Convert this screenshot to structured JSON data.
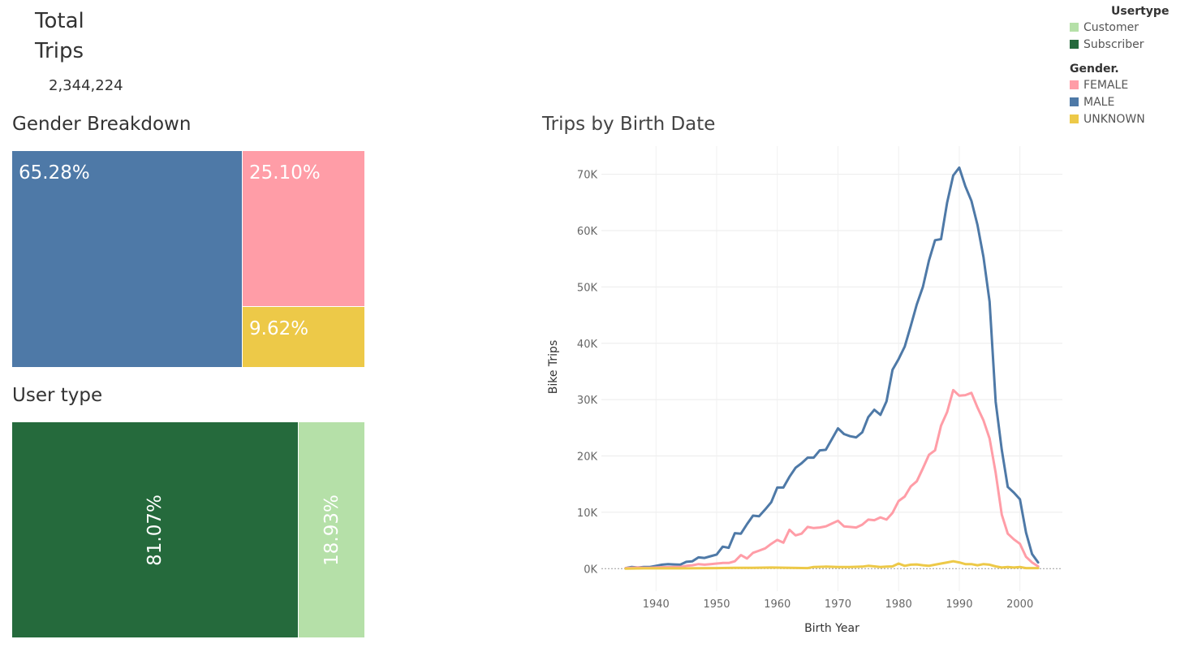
{
  "summary": {
    "total_title_line1": "Total",
    "total_title_line2": "Trips",
    "total_value": "2,344,224"
  },
  "gender_breakdown": {
    "title": "Gender Breakdown",
    "items": [
      {
        "label": "65.28%",
        "gender": "MALE",
        "color": "#4e79a7"
      },
      {
        "label": "25.10%",
        "gender": "FEMALE",
        "color": "#ff9da7"
      },
      {
        "label": "9.62%",
        "gender": "UNKNOWN",
        "color": "#edc948"
      }
    ]
  },
  "user_type": {
    "title": "User type",
    "items": [
      {
        "label": "81.07%",
        "type": "Subscriber",
        "color": "#256a3c"
      },
      {
        "label": "18.93%",
        "type": "Customer",
        "color": "#b5e0a8"
      }
    ]
  },
  "legend": {
    "usertype_title": "Usertype",
    "usertype_items": [
      {
        "label": "Customer",
        "color": "#b5e0a8"
      },
      {
        "label": "Subscriber",
        "color": "#256a3c"
      }
    ],
    "gender_title": "Gender.",
    "gender_items": [
      {
        "label": "FEMALE",
        "color": "#ff9da7"
      },
      {
        "label": "MALE",
        "color": "#4e79a7"
      },
      {
        "label": "UNKNOWN",
        "color": "#edc948"
      }
    ]
  },
  "chart_data": {
    "type": "line",
    "title": "Trips by Birth Date",
    "xlabel": "Birth Year",
    "ylabel": "Bike Trips",
    "xlim": [
      1931,
      2007
    ],
    "ylim": [
      -4000,
      75000
    ],
    "xticks": [
      1940,
      1950,
      1960,
      1970,
      1980,
      1990,
      2000
    ],
    "yticks": [
      0,
      10000,
      20000,
      30000,
      40000,
      50000,
      60000,
      70000
    ],
    "ytick_labels": [
      "0K",
      "10K",
      "20K",
      "30K",
      "40K",
      "50K",
      "60K",
      "70K"
    ],
    "xtick_labels": [
      "1940",
      "1950",
      "1960",
      "1970",
      "1980",
      "1990",
      "2000"
    ],
    "grid": true,
    "series": [
      {
        "name": "MALE",
        "color": "#4e79a7",
        "points": [
          [
            1935,
            100
          ],
          [
            1936,
            300
          ],
          [
            1937,
            200
          ],
          [
            1938,
            300
          ],
          [
            1939,
            300
          ],
          [
            1940,
            500
          ],
          [
            1941,
            700
          ],
          [
            1942,
            800
          ],
          [
            1943,
            750
          ],
          [
            1944,
            700
          ],
          [
            1945,
            1200
          ],
          [
            1946,
            1300
          ],
          [
            1947,
            2000
          ],
          [
            1948,
            1900
          ],
          [
            1949,
            2200
          ],
          [
            1950,
            2500
          ],
          [
            1951,
            3900
          ],
          [
            1952,
            3700
          ],
          [
            1953,
            6300
          ],
          [
            1954,
            6200
          ],
          [
            1955,
            7900
          ],
          [
            1956,
            9400
          ],
          [
            1957,
            9300
          ],
          [
            1958,
            10500
          ],
          [
            1959,
            11800
          ],
          [
            1960,
            14400
          ],
          [
            1961,
            14400
          ],
          [
            1962,
            16300
          ],
          [
            1963,
            17900
          ],
          [
            1964,
            18700
          ],
          [
            1965,
            19700
          ],
          [
            1966,
            19700
          ],
          [
            1967,
            21000
          ],
          [
            1968,
            21100
          ],
          [
            1969,
            23000
          ],
          [
            1970,
            24900
          ],
          [
            1971,
            23900
          ],
          [
            1972,
            23500
          ],
          [
            1973,
            23300
          ],
          [
            1974,
            24200
          ],
          [
            1975,
            26900
          ],
          [
            1976,
            28200
          ],
          [
            1977,
            27300
          ],
          [
            1978,
            29700
          ],
          [
            1979,
            35300
          ],
          [
            1980,
            37200
          ],
          [
            1981,
            39400
          ],
          [
            1982,
            43100
          ],
          [
            1983,
            46900
          ],
          [
            1984,
            50000
          ],
          [
            1985,
            54700
          ],
          [
            1986,
            58300
          ],
          [
            1987,
            58500
          ],
          [
            1988,
            65000
          ],
          [
            1989,
            69800
          ],
          [
            1990,
            71200
          ],
          [
            1991,
            67900
          ],
          [
            1992,
            65300
          ],
          [
            1993,
            61000
          ],
          [
            1994,
            55300
          ],
          [
            1995,
            47400
          ],
          [
            1996,
            29600
          ],
          [
            1997,
            21100
          ],
          [
            1998,
            14500
          ],
          [
            1999,
            13500
          ],
          [
            2000,
            12300
          ],
          [
            2001,
            6400
          ],
          [
            2002,
            2600
          ],
          [
            2003,
            1100
          ]
        ]
      },
      {
        "name": "FEMALE",
        "color": "#ff9da7",
        "points": [
          [
            1935,
            100
          ],
          [
            1936,
            150
          ],
          [
            1937,
            200
          ],
          [
            1938,
            150
          ],
          [
            1939,
            150
          ],
          [
            1940,
            200
          ],
          [
            1941,
            250
          ],
          [
            1942,
            250
          ],
          [
            1943,
            300
          ],
          [
            1944,
            300
          ],
          [
            1945,
            500
          ],
          [
            1946,
            600
          ],
          [
            1947,
            800
          ],
          [
            1948,
            700
          ],
          [
            1949,
            800
          ],
          [
            1950,
            900
          ],
          [
            1951,
            1000
          ],
          [
            1952,
            1000
          ],
          [
            1953,
            1300
          ],
          [
            1954,
            2400
          ],
          [
            1955,
            1800
          ],
          [
            1956,
            2800
          ],
          [
            1957,
            3200
          ],
          [
            1958,
            3600
          ],
          [
            1959,
            4400
          ],
          [
            1960,
            5100
          ],
          [
            1961,
            4600
          ],
          [
            1962,
            6900
          ],
          [
            1963,
            5900
          ],
          [
            1964,
            6200
          ],
          [
            1965,
            7400
          ],
          [
            1966,
            7200
          ],
          [
            1967,
            7300
          ],
          [
            1968,
            7500
          ],
          [
            1969,
            8000
          ],
          [
            1970,
            8500
          ],
          [
            1971,
            7500
          ],
          [
            1972,
            7400
          ],
          [
            1973,
            7300
          ],
          [
            1974,
            7800
          ],
          [
            1975,
            8700
          ],
          [
            1976,
            8600
          ],
          [
            1977,
            9100
          ],
          [
            1978,
            8700
          ],
          [
            1979,
            9900
          ],
          [
            1980,
            12000
          ],
          [
            1981,
            12800
          ],
          [
            1982,
            14600
          ],
          [
            1983,
            15500
          ],
          [
            1984,
            17800
          ],
          [
            1985,
            20200
          ],
          [
            1986,
            21000
          ],
          [
            1987,
            25400
          ],
          [
            1988,
            27800
          ],
          [
            1989,
            31700
          ],
          [
            1990,
            30700
          ],
          [
            1991,
            30800
          ],
          [
            1992,
            31200
          ],
          [
            1993,
            28600
          ],
          [
            1994,
            26300
          ],
          [
            1995,
            23100
          ],
          [
            1996,
            17000
          ],
          [
            1997,
            9600
          ],
          [
            1998,
            6200
          ],
          [
            1999,
            5200
          ],
          [
            2000,
            4400
          ],
          [
            2001,
            2100
          ],
          [
            2002,
            1100
          ],
          [
            2003,
            400
          ]
        ]
      },
      {
        "name": "UNKNOWN",
        "color": "#edc948",
        "points": [
          [
            1935,
            0
          ],
          [
            1938,
            50
          ],
          [
            1941,
            50
          ],
          [
            1944,
            50
          ],
          [
            1947,
            80
          ],
          [
            1950,
            100
          ],
          [
            1953,
            150
          ],
          [
            1956,
            150
          ],
          [
            1959,
            200
          ],
          [
            1962,
            150
          ],
          [
            1965,
            100
          ],
          [
            1966,
            300
          ],
          [
            1968,
            350
          ],
          [
            1970,
            300
          ],
          [
            1972,
            300
          ],
          [
            1974,
            350
          ],
          [
            1975,
            500
          ],
          [
            1976,
            400
          ],
          [
            1977,
            300
          ],
          [
            1978,
            350
          ],
          [
            1979,
            400
          ],
          [
            1980,
            900
          ],
          [
            1981,
            500
          ],
          [
            1982,
            700
          ],
          [
            1983,
            750
          ],
          [
            1984,
            600
          ],
          [
            1985,
            500
          ],
          [
            1986,
            700
          ],
          [
            1987,
            900
          ],
          [
            1988,
            1100
          ],
          [
            1989,
            1300
          ],
          [
            1990,
            1100
          ],
          [
            1991,
            800
          ],
          [
            1992,
            800
          ],
          [
            1993,
            600
          ],
          [
            1994,
            800
          ],
          [
            1995,
            700
          ],
          [
            1996,
            400
          ],
          [
            1997,
            200
          ],
          [
            1998,
            300
          ],
          [
            1999,
            200
          ],
          [
            2000,
            300
          ],
          [
            2001,
            100
          ],
          [
            2002,
            100
          ],
          [
            2003,
            100
          ]
        ]
      }
    ]
  }
}
